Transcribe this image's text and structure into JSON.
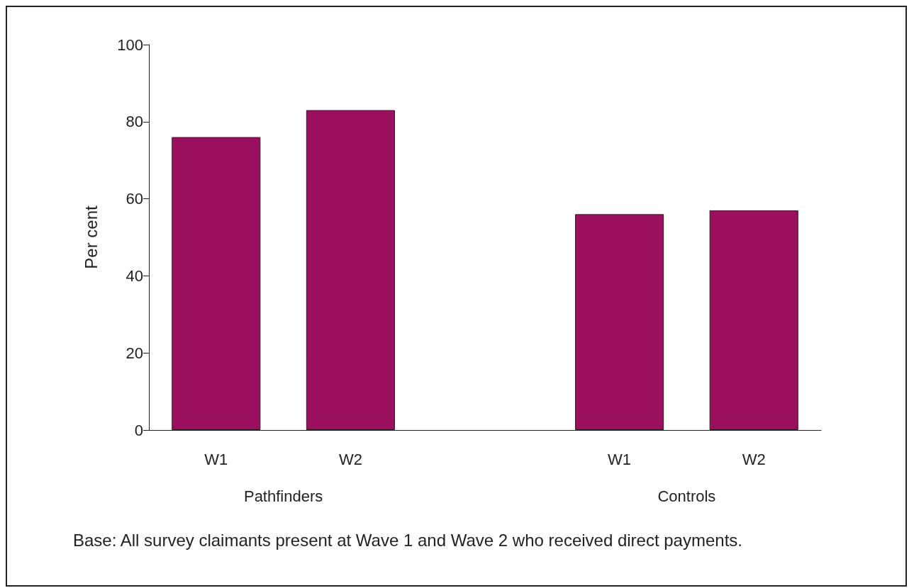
{
  "chart_data": {
    "type": "bar",
    "ylabel": "Per cent",
    "categories": [
      "W1",
      "W2",
      null,
      "W1",
      "W2"
    ],
    "values": [
      76,
      83,
      null,
      56,
      57
    ],
    "color": "#9a0f5e",
    "ylim": [
      0,
      100
    ],
    "yticks": [
      0,
      20,
      40,
      60,
      80,
      100
    ],
    "grid": false,
    "annotations": [
      "Pathfinders",
      "Controls",
      "Base: All survey claimants present at Wave 1 and Wave 2 who received direct payments."
    ]
  }
}
